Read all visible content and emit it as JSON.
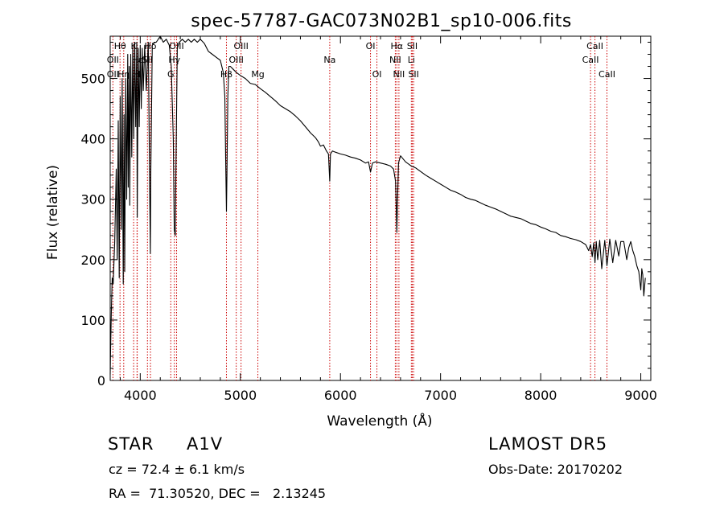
{
  "chart_data": {
    "type": "line",
    "title": "spec-57787-GAC073N02B1_sp10-006.fits",
    "xlabel": "Wavelength (Å)",
    "ylabel": "Flux (relative)",
    "xlim": [
      3700,
      9100
    ],
    "ylim": [
      0,
      570
    ],
    "xticks": [
      4000,
      5000,
      6000,
      7000,
      8000,
      9000
    ],
    "yticks": [
      0,
      100,
      200,
      300,
      400,
      500
    ],
    "grid": false,
    "series": [
      {
        "x": [
          3700,
          3705,
          3712,
          3720,
          3730,
          3745,
          3760,
          3770,
          3780,
          3790,
          3800,
          3810,
          3820,
          3830,
          3838,
          3845,
          3855,
          3865,
          3875,
          3880,
          3890,
          3895,
          3905,
          3915,
          3925,
          3935,
          3945,
          3955,
          3965,
          3970,
          3980,
          3990,
          4000,
          4010,
          4020,
          4030,
          4045,
          4060,
          4080,
          4095,
          4101,
          4106,
          4120,
          4140,
          4160,
          4180,
          4200,
          4230,
          4260,
          4290,
          4310,
          4330,
          4340,
          4350,
          4355,
          4370,
          4390,
          4420,
          4450,
          4480,
          4510,
          4540,
          4570,
          4600,
          4640,
          4680,
          4720,
          4760,
          4800,
          4830,
          4845,
          4855,
          4861,
          4866,
          4875,
          4885,
          4900,
          4930,
          4960,
          5000,
          5050,
          5100,
          5150,
          5200,
          5250,
          5300,
          5350,
          5400,
          5450,
          5500,
          5550,
          5600,
          5650,
          5700,
          5750,
          5780,
          5800,
          5830,
          5860,
          5880,
          5893,
          5900,
          5920,
          5950,
          6000,
          6050,
          6100,
          6150,
          6200,
          6250,
          6280,
          6300,
          6320,
          6350,
          6400,
          6450,
          6500,
          6530,
          6550,
          6557,
          6563,
          6570,
          6580,
          6600,
          6650,
          6700,
          6750,
          6800,
          6850,
          6900,
          6950,
          7000,
          7050,
          7100,
          7150,
          7200,
          7250,
          7300,
          7350,
          7400,
          7450,
          7500,
          7550,
          7600,
          7650,
          7700,
          7750,
          7800,
          7850,
          7900,
          7950,
          8000,
          8050,
          8100,
          8150,
          8200,
          8250,
          8300,
          8350,
          8400,
          8450,
          8480,
          8498,
          8515,
          8530,
          8542,
          8555,
          8570,
          8590,
          8610,
          8640,
          8662,
          8690,
          8720,
          8750,
          8780,
          8800,
          8830,
          8860,
          8880,
          8900,
          8920,
          8940,
          8960,
          8980,
          9000,
          9010,
          9020,
          9030,
          9045
        ],
        "y": [
          10,
          60,
          120,
          170,
          160,
          230,
          350,
          200,
          430,
          170,
          470,
          250,
          500,
          160,
          440,
          180,
          500,
          300,
          540,
          320,
          520,
          290,
          540,
          370,
          550,
          400,
          560,
          420,
          560,
          270,
          550,
          420,
          555,
          450,
          550,
          480,
          555,
          480,
          560,
          300,
          210,
          350,
          555,
          560,
          560,
          565,
          570,
          560,
          565,
          555,
          520,
          400,
          250,
          240,
          330,
          550,
          560,
          565,
          560,
          565,
          560,
          565,
          560,
          565,
          558,
          545,
          540,
          535,
          530,
          510,
          470,
          350,
          280,
          340,
          470,
          520,
          520,
          515,
          510,
          505,
          500,
          492,
          490,
          483,
          477,
          470,
          463,
          455,
          450,
          445,
          438,
          430,
          420,
          410,
          402,
          395,
          388,
          390,
          380,
          375,
          330,
          375,
          380,
          378,
          375,
          373,
          370,
          368,
          365,
          360,
          362,
          345,
          360,
          362,
          360,
          358,
          355,
          350,
          330,
          290,
          245,
          300,
          360,
          372,
          362,
          356,
          352,
          346,
          340,
          335,
          330,
          325,
          320,
          315,
          312,
          308,
          303,
          300,
          298,
          294,
          290,
          287,
          284,
          280,
          276,
          272,
          270,
          268,
          264,
          260,
          258,
          254,
          251,
          247,
          245,
          240,
          238,
          235,
          233,
          230,
          225,
          215,
          225,
          205,
          228,
          195,
          230,
          200,
          232,
          185,
          232,
          190,
          234,
          195,
          232,
          206,
          230,
          230,
          200,
          220,
          230,
          215,
          205,
          190,
          180,
          150,
          185,
          175,
          140,
          170
        ]
      }
    ],
    "line_color": "#000000",
    "line_marker_color": "#cc0000",
    "lines_top": [
      {
        "label": "Hθ",
        "x": 3798,
        "row": 0
      },
      {
        "label": "K",
        "x": 3934,
        "row": 0
      },
      {
        "label": "Hδ",
        "x": 4102,
        "row": 0
      },
      {
        "label": "OII",
        "x": 3727,
        "row": 1
      },
      {
        "label": "Hε",
        "x": 3970,
        "row": 1
      },
      {
        "label": "SII",
        "x": 4072,
        "row": 1
      },
      {
        "label": "OII",
        "x": 3727,
        "row": 2
      },
      {
        "label": "Hη",
        "x": 3835,
        "row": 2
      },
      {
        "label": "H",
        "x": 3968,
        "row": 2
      },
      {
        "label": "OIII",
        "x": 4363,
        "row": 0
      },
      {
        "label": "Hγ",
        "x": 4341,
        "row": 1
      },
      {
        "label": "G",
        "x": 4305,
        "row": 2
      },
      {
        "label": "OIII",
        "x": 5007,
        "row": 0
      },
      {
        "label": "OIII",
        "x": 4959,
        "row": 1
      },
      {
        "label": "Hβ",
        "x": 4861,
        "row": 2
      },
      {
        "label": "Mg",
        "x": 5175,
        "row": 2
      },
      {
        "label": "Na",
        "x": 5893,
        "row": 1
      },
      {
        "label": "OI",
        "x": 6300,
        "row": 0
      },
      {
        "label": "OI",
        "x": 6364,
        "row": 2
      },
      {
        "label": "Hα",
        "x": 6563,
        "row": 0
      },
      {
        "label": "SII",
        "x": 6717,
        "row": 0
      },
      {
        "label": "NII",
        "x": 6548,
        "row": 1
      },
      {
        "label": "Li",
        "x": 6708,
        "row": 1
      },
      {
        "label": "NII",
        "x": 6584,
        "row": 2
      },
      {
        "label": "SII",
        "x": 6731,
        "row": 2
      },
      {
        "label": "CaII",
        "x": 8542,
        "row": 0
      },
      {
        "label": "CaII",
        "x": 8498,
        "row": 1
      },
      {
        "label": "CaII",
        "x": 8662,
        "row": 2
      }
    ]
  },
  "info": {
    "object_type": "STAR",
    "subclass": "A1V",
    "survey": "LAMOST DR5",
    "cz": "cz = 72.4 ± 6.1 km/s",
    "obs_date": "Obs-Date: 20170202",
    "radec": "RA =  71.30520, DEC =   2.13245"
  }
}
